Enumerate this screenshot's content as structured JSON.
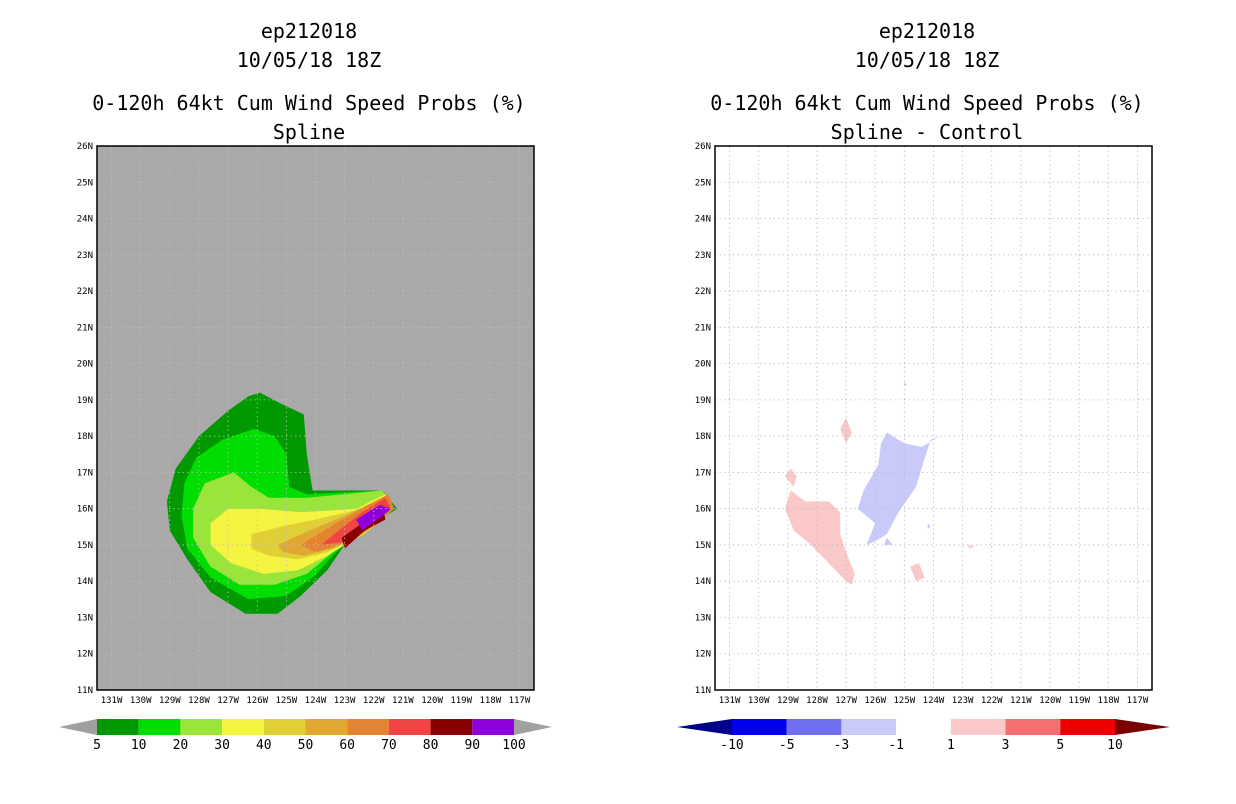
{
  "chart_data": [
    {
      "type": "filled-contour",
      "title": [
        "ep212018",
        "10/05/18 18Z",
        "0-120h 64kt Cum Wind Speed Probs (%)",
        "Spline"
      ],
      "background_color": "#a9a9a9",
      "xlabel": "",
      "ylabel": "",
      "xlim": [
        -131.5,
        -116.5
      ],
      "ylim": [
        11,
        26
      ],
      "x_ticks": [
        "131W",
        "130W",
        "129W",
        "128W",
        "127W",
        "126W",
        "125W",
        "124W",
        "123W",
        "122W",
        "121W",
        "120W",
        "119W",
        "118W",
        "117W"
      ],
      "y_ticks": [
        "11N",
        "12N",
        "13N",
        "14N",
        "15N",
        "16N",
        "17N",
        "18N",
        "19N",
        "20N",
        "21N",
        "22N",
        "23N",
        "24N",
        "25N",
        "26N"
      ],
      "grid": true,
      "colorbar": {
        "labels": [
          "5",
          "10",
          "20",
          "30",
          "40",
          "50",
          "60",
          "70",
          "80",
          "90",
          "100"
        ],
        "colors": [
          "#a0a0a0",
          "#009900",
          "#00dd00",
          "#99e539",
          "#f5f541",
          "#e1cf37",
          "#e0a733",
          "#e68330",
          "#f14545",
          "#880000",
          "#8f00dd",
          "#a0a0a0"
        ]
      },
      "contours": [
        {
          "level": 5,
          "color": "#009900",
          "points": [
            [
              -125.9,
              19.2
            ],
            [
              -125.2,
              18.9
            ],
            [
              -124.4,
              18.6
            ],
            [
              -124.3,
              17.5
            ],
            [
              -124.1,
              16.5
            ],
            [
              -121.7,
              16.5
            ],
            [
              -121.2,
              16.0
            ],
            [
              -122.0,
              15.6
            ],
            [
              -123.0,
              15.0
            ],
            [
              -123.6,
              14.3
            ],
            [
              -124.5,
              13.6
            ],
            [
              -125.3,
              13.1
            ],
            [
              -126.4,
              13.1
            ],
            [
              -127.6,
              13.7
            ],
            [
              -128.4,
              14.6
            ],
            [
              -129.0,
              15.4
            ],
            [
              -129.1,
              16.2
            ],
            [
              -128.8,
              17.1
            ],
            [
              -128.0,
              18.0
            ],
            [
              -127.0,
              18.7
            ],
            [
              -126.3,
              19.1
            ]
          ]
        },
        {
          "level": 10,
          "color": "#00dd00",
          "points": [
            [
              -126.1,
              18.2
            ],
            [
              -125.4,
              18.0
            ],
            [
              -125.0,
              17.5
            ],
            [
              -124.9,
              16.6
            ],
            [
              -124.3,
              16.4
            ],
            [
              -121.7,
              16.5
            ],
            [
              -121.3,
              16.0
            ],
            [
              -122.4,
              15.4
            ],
            [
              -123.3,
              14.8
            ],
            [
              -124.1,
              14.1
            ],
            [
              -125.0,
              13.6
            ],
            [
              -126.3,
              13.5
            ],
            [
              -127.6,
              14.1
            ],
            [
              -128.4,
              14.9
            ],
            [
              -128.6,
              15.8
            ],
            [
              -128.5,
              16.7
            ],
            [
              -128.1,
              17.4
            ],
            [
              -127.2,
              17.9
            ]
          ]
        },
        {
          "level": 20,
          "color": "#99e539",
          "points": [
            [
              -126.8,
              17.0
            ],
            [
              -126.2,
              16.6
            ],
            [
              -125.6,
              16.3
            ],
            [
              -124.3,
              16.3
            ],
            [
              -121.7,
              16.5
            ],
            [
              -121.3,
              16.0
            ],
            [
              -122.4,
              15.4
            ],
            [
              -123.4,
              14.8
            ],
            [
              -124.3,
              14.2
            ],
            [
              -125.4,
              13.9
            ],
            [
              -126.6,
              13.9
            ],
            [
              -127.6,
              14.4
            ],
            [
              -128.2,
              15.2
            ],
            [
              -128.2,
              16.0
            ],
            [
              -127.8,
              16.7
            ]
          ]
        },
        {
          "level": 30,
          "color": "#f5f541",
          "points": [
            [
              -127.0,
              16.0
            ],
            [
              -125.9,
              16.0
            ],
            [
              -124.5,
              15.9
            ],
            [
              -122.6,
              16.0
            ],
            [
              -121.6,
              16.4
            ],
            [
              -121.3,
              16.0
            ],
            [
              -122.4,
              15.3
            ],
            [
              -123.6,
              14.7
            ],
            [
              -124.6,
              14.3
            ],
            [
              -125.8,
              14.2
            ],
            [
              -126.9,
              14.5
            ],
            [
              -127.6,
              15.0
            ],
            [
              -127.6,
              15.6
            ]
          ]
        },
        {
          "level": 40,
          "color": "#e1cf37",
          "points": [
            [
              -126.2,
              15.3
            ],
            [
              -125.2,
              15.5
            ],
            [
              -124.0,
              15.7
            ],
            [
              -122.4,
              16.0
            ],
            [
              -121.6,
              16.3
            ],
            [
              -121.3,
              16.0
            ],
            [
              -122.3,
              15.3
            ],
            [
              -123.6,
              14.8
            ],
            [
              -124.6,
              14.6
            ],
            [
              -125.6,
              14.7
            ],
            [
              -126.2,
              14.9
            ]
          ]
        },
        {
          "level": 50,
          "color": "#e0a733",
          "points": [
            [
              -125.3,
              15.0
            ],
            [
              -124.2,
              15.4
            ],
            [
              -123.0,
              15.8
            ],
            [
              -121.7,
              16.3
            ],
            [
              -121.3,
              16.0
            ],
            [
              -122.2,
              15.4
            ],
            [
              -123.4,
              14.9
            ],
            [
              -124.4,
              14.7
            ],
            [
              -125.1,
              14.8
            ]
          ]
        },
        {
          "level": 60,
          "color": "#e68330",
          "points": [
            [
              -124.5,
              15.0
            ],
            [
              -123.3,
              15.6
            ],
            [
              -122.2,
              16.1
            ],
            [
              -121.5,
              16.4
            ],
            [
              -121.3,
              16.0
            ],
            [
              -122.1,
              15.5
            ],
            [
              -123.2,
              15.0
            ],
            [
              -124.0,
              14.8
            ]
          ]
        },
        {
          "level": 70,
          "color": "#f14545",
          "points": [
            [
              -123.8,
              15.0
            ],
            [
              -123.2,
              15.4
            ],
            [
              -122.4,
              15.9
            ],
            [
              -121.6,
              16.3
            ],
            [
              -121.4,
              16.0
            ],
            [
              -122.1,
              15.5
            ],
            [
              -122.8,
              15.1
            ]
          ]
        },
        {
          "level": 80,
          "color": "#880000",
          "points": [
            [
              -123.1,
              15.2
            ],
            [
              -122.4,
              15.6
            ],
            [
              -121.7,
              16.1
            ],
            [
              -121.6,
              15.7
            ],
            [
              -122.3,
              15.4
            ],
            [
              -123.0,
              14.9
            ]
          ]
        },
        {
          "level": 90,
          "color": "#8f00dd",
          "points": [
            [
              -122.6,
              15.7
            ],
            [
              -121.8,
              16.1
            ],
            [
              -121.4,
              16.0
            ],
            [
              -121.7,
              15.8
            ],
            [
              -122.4,
              15.4
            ]
          ]
        }
      ]
    },
    {
      "type": "filled-contour",
      "title": [
        "ep212018",
        "10/05/18 18Z",
        "0-120h 64kt Cum Wind Speed Probs (%)",
        "Spline - Control"
      ],
      "background_color": "#ffffff",
      "xlabel": "",
      "ylabel": "",
      "xlim": [
        -131.5,
        -116.5
      ],
      "ylim": [
        11,
        26
      ],
      "x_ticks": [
        "131W",
        "130W",
        "129W",
        "128W",
        "127W",
        "126W",
        "125W",
        "124W",
        "123W",
        "122W",
        "121W",
        "120W",
        "119W",
        "118W",
        "117W"
      ],
      "y_ticks": [
        "11N",
        "12N",
        "13N",
        "14N",
        "15N",
        "16N",
        "17N",
        "18N",
        "19N",
        "20N",
        "21N",
        "22N",
        "23N",
        "24N",
        "25N",
        "26N"
      ],
      "grid": true,
      "colorbar": {
        "labels": [
          "-10",
          "-5",
          "-3",
          "-1",
          "1",
          "3",
          "5",
          "10"
        ],
        "colors": [
          "#00008b",
          "#0000ee",
          "#6f6ff0",
          "#c9c9fa",
          "#ffffff",
          "#fac8c8",
          "#f27070",
          "#ee0000",
          "#7a0000"
        ]
      },
      "contours": [
        {
          "level": 1,
          "color": "#fac8c8",
          "points": [
            [
              -129.1,
              16.0
            ],
            [
              -128.9,
              16.5
            ],
            [
              -128.4,
              16.2
            ],
            [
              -127.6,
              16.2
            ],
            [
              -127.2,
              15.9
            ],
            [
              -127.2,
              15.3
            ],
            [
              -127.0,
              14.8
            ],
            [
              -126.7,
              14.2
            ],
            [
              -126.8,
              13.9
            ],
            [
              -127.0,
              14.0
            ],
            [
              -127.6,
              14.5
            ],
            [
              -128.2,
              15.0
            ],
            [
              -128.8,
              15.4
            ]
          ]
        },
        {
          "level": 1,
          "color": "#fac8c8",
          "points": [
            [
              -128.9,
              17.1
            ],
            [
              -128.7,
              16.9
            ],
            [
              -128.8,
              16.6
            ],
            [
              -129.1,
              16.9
            ]
          ]
        },
        {
          "level": 1,
          "color": "#fac8c8",
          "points": [
            [
              -127.0,
              18.5
            ],
            [
              -126.8,
              18.1
            ],
            [
              -127.0,
              17.8
            ],
            [
              -127.2,
              18.2
            ]
          ]
        },
        {
          "level": 1,
          "color": "#fac8c8",
          "points": [
            [
              -124.5,
              14.5
            ],
            [
              -124.3,
              14.1
            ],
            [
              -124.6,
              14.0
            ],
            [
              -124.8,
              14.4
            ]
          ]
        },
        {
          "level": 1,
          "color": "#fac8c8",
          "points": [
            [
              -122.8,
              15.0
            ],
            [
              -122.6,
              14.95
            ],
            [
              -122.8,
              14.9
            ]
          ]
        },
        {
          "level": -1,
          "color": "#c9c9fa",
          "points": [
            [
              -126.4,
              16.5
            ],
            [
              -125.9,
              17.2
            ],
            [
              -125.8,
              17.8
            ],
            [
              -125.6,
              18.1
            ],
            [
              -125.0,
              17.8
            ],
            [
              -124.4,
              17.7
            ],
            [
              -123.8,
              18.0
            ],
            [
              -124.1,
              17.9
            ],
            [
              -124.3,
              17.4
            ],
            [
              -124.6,
              16.6
            ],
            [
              -125.2,
              15.9
            ],
            [
              -125.6,
              15.3
            ],
            [
              -126.0,
              15.1
            ],
            [
              -126.3,
              15.0
            ],
            [
              -126.0,
              15.6
            ],
            [
              -126.6,
              16.0
            ]
          ]
        },
        {
          "level": -1,
          "color": "#c9c9fa",
          "points": [
            [
              -125.0,
              19.5
            ],
            [
              -124.9,
              19.4
            ],
            [
              -125.0,
              19.4
            ]
          ]
        },
        {
          "level": -1,
          "color": "#c9c9fa",
          "points": [
            [
              -124.2,
              15.6
            ],
            [
              -124.1,
              15.5
            ],
            [
              -124.2,
              15.45
            ]
          ]
        },
        {
          "level": -1,
          "color": "#c9c9fa",
          "points": [
            [
              -125.6,
              15.2
            ],
            [
              -125.4,
              15.0
            ],
            [
              -125.7,
              15.0
            ]
          ]
        }
      ]
    }
  ]
}
